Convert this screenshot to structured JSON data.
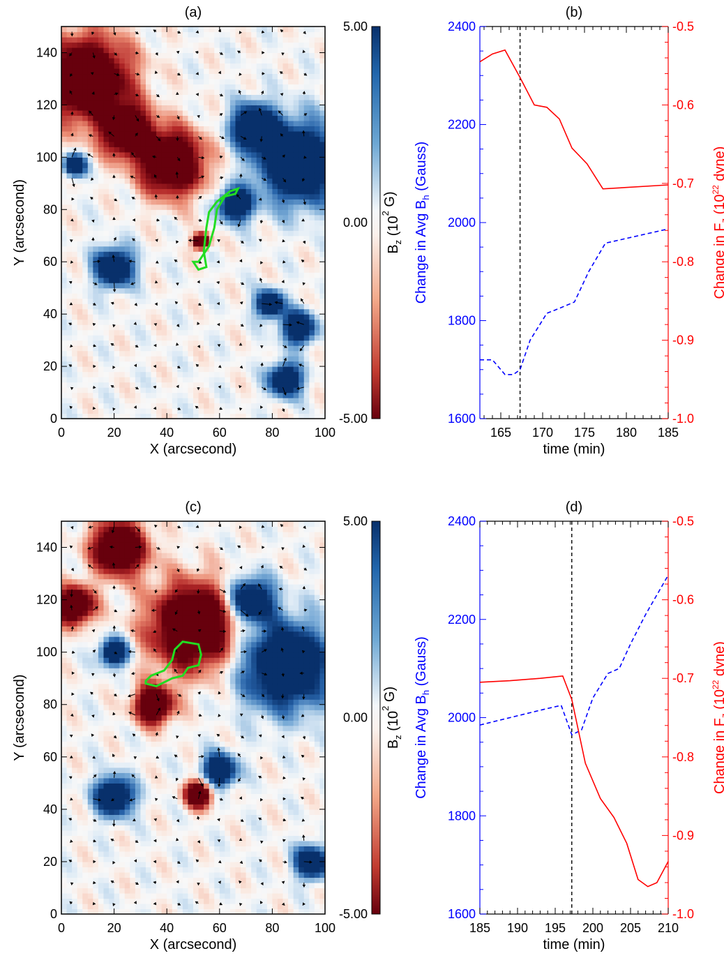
{
  "chart_data": [
    {
      "panel": "(a)",
      "type": "heatmap",
      "title": "(a)",
      "xlabel": "X (arcsecond)",
      "ylabel": "Y (arcsecond)",
      "xlim": [
        0,
        100
      ],
      "ylim": [
        0,
        150
      ],
      "xticks": [
        "0",
        "20",
        "40",
        "60",
        "80",
        "100"
      ],
      "yticks": [
        "0",
        "20",
        "40",
        "60",
        "80",
        "100",
        "120",
        "140"
      ],
      "colorbar": {
        "label_main": "B",
        "label_sub": "z",
        "label_rest": " (10",
        "label_sup": "2",
        "label_end": " G)",
        "ticks": [
          "5.00",
          "0.00",
          "-5.00"
        ],
        "range": [
          -5,
          5
        ]
      },
      "field_centers": [
        {
          "x": 10,
          "y": 130,
          "r": 16,
          "sign": -1
        },
        {
          "x": 42,
          "y": 98,
          "r": 12,
          "sign": -1
        },
        {
          "x": 25,
          "y": 110,
          "r": 9,
          "sign": -1
        },
        {
          "x": 90,
          "y": 98,
          "r": 15,
          "sign": 1
        },
        {
          "x": 73,
          "y": 112,
          "r": 8,
          "sign": 1
        },
        {
          "x": 66,
          "y": 82,
          "r": 6,
          "sign": 1
        },
        {
          "x": 79,
          "y": 44,
          "r": 5,
          "sign": 1
        },
        {
          "x": 90,
          "y": 35,
          "r": 6,
          "sign": 1
        },
        {
          "x": 85,
          "y": 15,
          "r": 6,
          "sign": 1
        },
        {
          "x": 20,
          "y": 58,
          "r": 7,
          "sign": 1
        },
        {
          "x": 53,
          "y": 68,
          "r": 3,
          "sign": -1
        },
        {
          "x": 5,
          "y": 97,
          "r": 4,
          "sign": 1
        }
      ],
      "contour": [
        [
          50,
          60
        ],
        [
          52,
          57
        ],
        [
          55,
          58
        ],
        [
          54,
          64
        ],
        [
          55,
          73
        ],
        [
          56,
          79
        ],
        [
          59,
          83
        ],
        [
          64,
          87
        ],
        [
          67,
          88
        ],
        [
          66,
          86
        ],
        [
          62,
          85
        ],
        [
          59,
          80
        ],
        [
          58,
          73
        ],
        [
          56,
          66
        ],
        [
          52,
          60
        ]
      ]
    },
    {
      "panel": "(b)",
      "type": "line",
      "title": "(b)",
      "xlabel": "time (min)",
      "ylabel_left": {
        "main": "Change in Avg B",
        "sub": "h",
        "rest": " (Gauss)"
      },
      "ylabel_right": {
        "main": "Change in F",
        "sub": "z",
        "rest": " (10",
        "sup": "22",
        "end": " dyne)"
      },
      "xlim": [
        162.5,
        185
      ],
      "ylim_left": [
        1600,
        2400
      ],
      "ylim_right": [
        -1.0,
        -0.5
      ],
      "xticks": [
        165,
        170,
        175,
        180,
        185
      ],
      "yticks_left": [
        1600,
        1800,
        2000,
        2200,
        2400
      ],
      "yticks_right": [
        -1.0,
        -0.9,
        -0.8,
        -0.7,
        -0.6,
        -0.5
      ],
      "vline": 167.3,
      "series": [
        {
          "axis": "left",
          "color": "#0000ff",
          "dash": true,
          "x": [
            162.5,
            164,
            165.5,
            166.5,
            167.3,
            168.5,
            170.5,
            172,
            173.8,
            175.5,
            177.5,
            185
          ],
          "y": [
            1720,
            1720,
            1690,
            1690,
            1700,
            1760,
            1815,
            1825,
            1838,
            1900,
            1958,
            1987
          ]
        },
        {
          "axis": "right",
          "color": "#ff0000",
          "dash": false,
          "x": [
            162.5,
            164,
            165.5,
            167.3,
            169,
            170.5,
            172,
            173.5,
            175.3,
            177.2,
            185
          ],
          "y": [
            -0.545,
            -0.535,
            -0.53,
            -0.565,
            -0.6,
            -0.603,
            -0.618,
            -0.655,
            -0.675,
            -0.707,
            -0.702
          ]
        }
      ]
    },
    {
      "panel": "(c)",
      "type": "heatmap",
      "title": "(c)",
      "xlabel": "X (arcsecond)",
      "ylabel": "Y (arcsecond)",
      "xlim": [
        0,
        100
      ],
      "ylim": [
        0,
        150
      ],
      "xticks": [
        "0",
        "20",
        "40",
        "60",
        "80",
        "100"
      ],
      "yticks": [
        "0",
        "20",
        "40",
        "60",
        "80",
        "100",
        "120",
        "140"
      ],
      "colorbar": {
        "label_main": "B",
        "label_sub": "z",
        "label_rest": " (10",
        "label_sup": "2",
        "label_end": " G)",
        "ticks": [
          "5.00",
          "0.00",
          "-5.00"
        ],
        "range": [
          -5,
          5
        ]
      },
      "field_centers": [
        {
          "x": 50,
          "y": 110,
          "r": 16,
          "sign": -1
        },
        {
          "x": 22,
          "y": 140,
          "r": 10,
          "sign": -1
        },
        {
          "x": 5,
          "y": 118,
          "r": 7,
          "sign": -1
        },
        {
          "x": 35,
          "y": 80,
          "r": 7,
          "sign": -1
        },
        {
          "x": 52,
          "y": 46,
          "r": 5,
          "sign": -1
        },
        {
          "x": 85,
          "y": 95,
          "r": 16,
          "sign": 1
        },
        {
          "x": 72,
          "y": 120,
          "r": 8,
          "sign": 1
        },
        {
          "x": 60,
          "y": 55,
          "r": 6,
          "sign": 1
        },
        {
          "x": 20,
          "y": 45,
          "r": 7,
          "sign": 1
        },
        {
          "x": 95,
          "y": 20,
          "r": 6,
          "sign": 1
        },
        {
          "x": 20,
          "y": 100,
          "r": 5,
          "sign": 1
        }
      ],
      "contour": [
        [
          32,
          88
        ],
        [
          36,
          87
        ],
        [
          42,
          90
        ],
        [
          46,
          91
        ],
        [
          48,
          94
        ],
        [
          52,
          95
        ],
        [
          53,
          99
        ],
        [
          52,
          103
        ],
        [
          46,
          104
        ],
        [
          43,
          101
        ],
        [
          42,
          97
        ],
        [
          39,
          93
        ],
        [
          34,
          91
        ],
        [
          32,
          89
        ]
      ]
    },
    {
      "panel": "(d)",
      "type": "line",
      "title": "(d)",
      "xlabel": "time (min)",
      "ylabel_left": {
        "main": "Change in Avg B",
        "sub": "h",
        "rest": " (Gauss)"
      },
      "ylabel_right": {
        "main": "Change in F",
        "sub": "z",
        "rest": " (10",
        "sup": "22",
        "end": " dyne)"
      },
      "xlim": [
        185,
        210
      ],
      "ylim_left": [
        1600,
        2400
      ],
      "ylim_right": [
        -1.0,
        -0.5
      ],
      "xticks": [
        185,
        190,
        195,
        200,
        205,
        210
      ],
      "yticks_left": [
        1600,
        1800,
        2000,
        2200,
        2400
      ],
      "yticks_right": [
        -1.0,
        -0.9,
        -0.8,
        -0.7,
        -0.6,
        -0.5
      ],
      "vline": 197.2,
      "series": [
        {
          "axis": "left",
          "color": "#0000ff",
          "dash": true,
          "x": [
            185,
            189,
            193,
            195.8,
            197.2,
            198.5,
            200,
            202,
            203.5,
            205,
            207,
            210
          ],
          "y": [
            1985,
            2000,
            2015,
            2025,
            1965,
            1975,
            2040,
            2090,
            2100,
            2150,
            2210,
            2290
          ]
        },
        {
          "axis": "right",
          "color": "#ff0000",
          "dash": false,
          "x": [
            185,
            189,
            193,
            196,
            197.2,
            199,
            201,
            202.8,
            204.5,
            206,
            207.3,
            208.5,
            210
          ],
          "y": [
            -0.705,
            -0.703,
            -0.7,
            -0.697,
            -0.727,
            -0.808,
            -0.853,
            -0.877,
            -0.91,
            -0.956,
            -0.965,
            -0.96,
            -0.933
          ]
        }
      ]
    }
  ]
}
